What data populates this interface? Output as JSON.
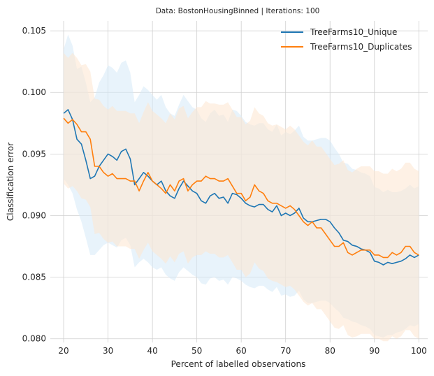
{
  "chart_data": {
    "type": "line",
    "title": "Data: BostonHousingBinned | Iterations: 100",
    "xlabel": "Percent of labelled observations",
    "ylabel": "Classification error",
    "xlim": [
      17,
      102
    ],
    "ylim": [
      0.0797,
      0.1058
    ],
    "xticks": [
      20,
      30,
      40,
      50,
      60,
      70,
      80,
      90,
      100
    ],
    "yticks": [
      0.08,
      0.085,
      0.09,
      0.095,
      0.1,
      0.105
    ],
    "xtick_labels": [
      "20",
      "30",
      "40",
      "50",
      "60",
      "70",
      "80",
      "90",
      "100"
    ],
    "ytick_labels": [
      "0.080",
      "0.085",
      "0.090",
      "0.095",
      "0.100",
      "0.105"
    ],
    "grid": true,
    "legend_position": "top-right",
    "x": [
      20,
      21,
      22,
      23,
      24,
      25,
      26,
      27,
      28,
      29,
      30,
      31,
      32,
      33,
      34,
      35,
      36,
      37,
      38,
      39,
      40,
      41,
      42,
      43,
      44,
      45,
      46,
      47,
      48,
      49,
      50,
      51,
      52,
      53,
      54,
      55,
      56,
      57,
      58,
      59,
      60,
      61,
      62,
      63,
      64,
      65,
      66,
      67,
      68,
      69,
      70,
      71,
      72,
      73,
      74,
      75,
      76,
      77,
      78,
      79,
      80,
      81,
      82,
      83,
      84,
      85,
      86,
      87,
      88,
      89,
      90,
      91,
      92,
      93,
      94,
      95,
      96,
      97,
      98,
      99,
      100
    ],
    "series": [
      {
        "name": "TreeFarms10_Unique",
        "color": "#1f77b4",
        "band_color": "#d6eaf8",
        "values": [
          0.0983,
          0.0986,
          0.0978,
          0.0962,
          0.0958,
          0.0945,
          0.093,
          0.0932,
          0.094,
          0.0945,
          0.095,
          0.0948,
          0.0945,
          0.0952,
          0.0954,
          0.0946,
          0.0925,
          0.093,
          0.0935,
          0.0932,
          0.0928,
          0.0925,
          0.0928,
          0.092,
          0.0916,
          0.0914,
          0.0922,
          0.0928,
          0.0924,
          0.092,
          0.0918,
          0.0912,
          0.091,
          0.0916,
          0.0918,
          0.0914,
          0.0915,
          0.091,
          0.0918,
          0.0917,
          0.0914,
          0.091,
          0.0908,
          0.0907,
          0.0909,
          0.0909,
          0.0905,
          0.0903,
          0.0908,
          0.09,
          0.0902,
          0.09,
          0.0902,
          0.0906,
          0.0898,
          0.0895,
          0.0895,
          0.0896,
          0.0897,
          0.0897,
          0.0895,
          0.089,
          0.0886,
          0.088,
          0.0879,
          0.0876,
          0.0875,
          0.0873,
          0.0872,
          0.087,
          0.0863,
          0.0862,
          0.086,
          0.0862,
          0.0861,
          0.0862,
          0.0863,
          0.0865,
          0.0868,
          0.0866,
          0.0868
        ],
        "lower": [
          0.093,
          0.0925,
          0.0918,
          0.0905,
          0.0895,
          0.0882,
          0.0868,
          0.0868,
          0.0872,
          0.0876,
          0.0878,
          0.0876,
          0.0874,
          0.088,
          0.0882,
          0.0876,
          0.0858,
          0.0862,
          0.0865,
          0.0862,
          0.0858,
          0.0856,
          0.0858,
          0.0852,
          0.0849,
          0.0847,
          0.0854,
          0.0858,
          0.0855,
          0.0852,
          0.085,
          0.0845,
          0.0844,
          0.0849,
          0.085,
          0.0847,
          0.0848,
          0.0844,
          0.085,
          0.0849,
          0.0847,
          0.0844,
          0.0842,
          0.0841,
          0.0843,
          0.0843,
          0.084,
          0.0838,
          0.0842,
          0.0835,
          0.0836,
          0.0834,
          0.0835,
          0.0839,
          0.0832,
          0.0829,
          0.0829,
          0.083,
          0.0831,
          0.0831,
          0.0829,
          0.0825,
          0.0822,
          0.0817,
          0.0816,
          0.0814,
          0.0813,
          0.0811,
          0.081,
          0.0808,
          0.0803,
          0.0802,
          0.0801,
          0.0803,
          0.0803,
          0.0805,
          0.0806,
          0.0808,
          0.0811,
          0.081,
          0.0812
        ],
        "upper": [
          0.1035,
          0.1047,
          0.1038,
          0.1019,
          0.1021,
          0.1008,
          0.0992,
          0.0996,
          0.1008,
          0.1014,
          0.1022,
          0.102,
          0.1016,
          0.1024,
          0.1026,
          0.1016,
          0.0992,
          0.0998,
          0.1005,
          0.1002,
          0.0998,
          0.0994,
          0.0998,
          0.0988,
          0.0983,
          0.0981,
          0.099,
          0.0998,
          0.0993,
          0.0988,
          0.0986,
          0.0979,
          0.0976,
          0.0983,
          0.0986,
          0.0981,
          0.0982,
          0.0976,
          0.0986,
          0.0985,
          0.0981,
          0.0976,
          0.0974,
          0.0973,
          0.0975,
          0.0975,
          0.097,
          0.0968,
          0.0974,
          0.0965,
          0.0968,
          0.0966,
          0.0969,
          0.0973,
          0.0964,
          0.0961,
          0.0961,
          0.0962,
          0.0963,
          0.0963,
          0.0961,
          0.0955,
          0.095,
          0.0943,
          0.0942,
          0.0938,
          0.0937,
          0.0935,
          0.0934,
          0.0932,
          0.0923,
          0.0922,
          0.0919,
          0.0921,
          0.0919,
          0.0919,
          0.092,
          0.0922,
          0.0925,
          0.0922,
          0.0924
        ]
      },
      {
        "name": "TreeFarms10_Duplicates",
        "color": "#ff7f0e",
        "band_color": "#fde5cf",
        "values": [
          0.0979,
          0.0975,
          0.0978,
          0.0974,
          0.0968,
          0.0968,
          0.0962,
          0.094,
          0.094,
          0.0935,
          0.0932,
          0.0934,
          0.093,
          0.093,
          0.093,
          0.0928,
          0.0928,
          0.092,
          0.0928,
          0.0935,
          0.0928,
          0.0925,
          0.0922,
          0.0918,
          0.0925,
          0.092,
          0.0928,
          0.093,
          0.092,
          0.0925,
          0.0928,
          0.0928,
          0.0932,
          0.093,
          0.093,
          0.0928,
          0.0928,
          0.093,
          0.0924,
          0.0918,
          0.0918,
          0.0912,
          0.0915,
          0.0925,
          0.092,
          0.0918,
          0.0912,
          0.091,
          0.091,
          0.0908,
          0.0906,
          0.0908,
          0.0905,
          0.09,
          0.0895,
          0.0892,
          0.0895,
          0.089,
          0.089,
          0.0885,
          0.088,
          0.0875,
          0.0875,
          0.0878,
          0.087,
          0.0868,
          0.087,
          0.0872,
          0.0872,
          0.0872,
          0.0868,
          0.0868,
          0.0866,
          0.0866,
          0.087,
          0.0868,
          0.087,
          0.0875,
          0.0875,
          0.087,
          0.0868
        ],
        "lower": [
          0.0926,
          0.0922,
          0.0924,
          0.092,
          0.0914,
          0.0913,
          0.0907,
          0.0885,
          0.0886,
          0.0881,
          0.0878,
          0.0879,
          0.0875,
          0.0875,
          0.0875,
          0.0873,
          0.0873,
          0.0865,
          0.0872,
          0.0878,
          0.0871,
          0.0868,
          0.0865,
          0.0861,
          0.0867,
          0.0862,
          0.0869,
          0.0871,
          0.0861,
          0.0866,
          0.0868,
          0.0868,
          0.0871,
          0.0869,
          0.0869,
          0.0866,
          0.0866,
          0.0868,
          0.0862,
          0.0856,
          0.0856,
          0.085,
          0.0853,
          0.0862,
          0.0857,
          0.0855,
          0.0849,
          0.0847,
          0.0846,
          0.0844,
          0.0842,
          0.0843,
          0.084,
          0.0835,
          0.083,
          0.0827,
          0.0829,
          0.0824,
          0.0824,
          0.0819,
          0.0814,
          0.0809,
          0.0808,
          0.0811,
          0.0803,
          0.0801,
          0.0802,
          0.0804,
          0.0804,
          0.0804,
          0.08,
          0.08,
          0.0798,
          0.0798,
          0.0802,
          0.08,
          0.0802,
          0.0807,
          0.0807,
          0.0802,
          0.08
        ],
        "upper": [
          0.1032,
          0.1028,
          0.1032,
          0.1028,
          0.1022,
          0.1023,
          0.1017,
          0.0995,
          0.0994,
          0.0989,
          0.0986,
          0.0989,
          0.0985,
          0.0985,
          0.0985,
          0.0983,
          0.0983,
          0.0975,
          0.0984,
          0.0992,
          0.0985,
          0.0982,
          0.0979,
          0.0975,
          0.0983,
          0.0978,
          0.0987,
          0.0989,
          0.0979,
          0.0984,
          0.0988,
          0.0988,
          0.0993,
          0.0991,
          0.0991,
          0.099,
          0.099,
          0.0992,
          0.0986,
          0.098,
          0.098,
          0.0974,
          0.0977,
          0.0988,
          0.0983,
          0.0981,
          0.0975,
          0.0973,
          0.0974,
          0.0972,
          0.097,
          0.0973,
          0.097,
          0.0965,
          0.096,
          0.0957,
          0.0961,
          0.0956,
          0.0956,
          0.0951,
          0.0946,
          0.0941,
          0.0942,
          0.0945,
          0.0937,
          0.0935,
          0.0938,
          0.094,
          0.094,
          0.094,
          0.0936,
          0.0936,
          0.0934,
          0.0934,
          0.0938,
          0.0936,
          0.0938,
          0.0943,
          0.0943,
          0.0938,
          0.0936
        ]
      }
    ]
  }
}
